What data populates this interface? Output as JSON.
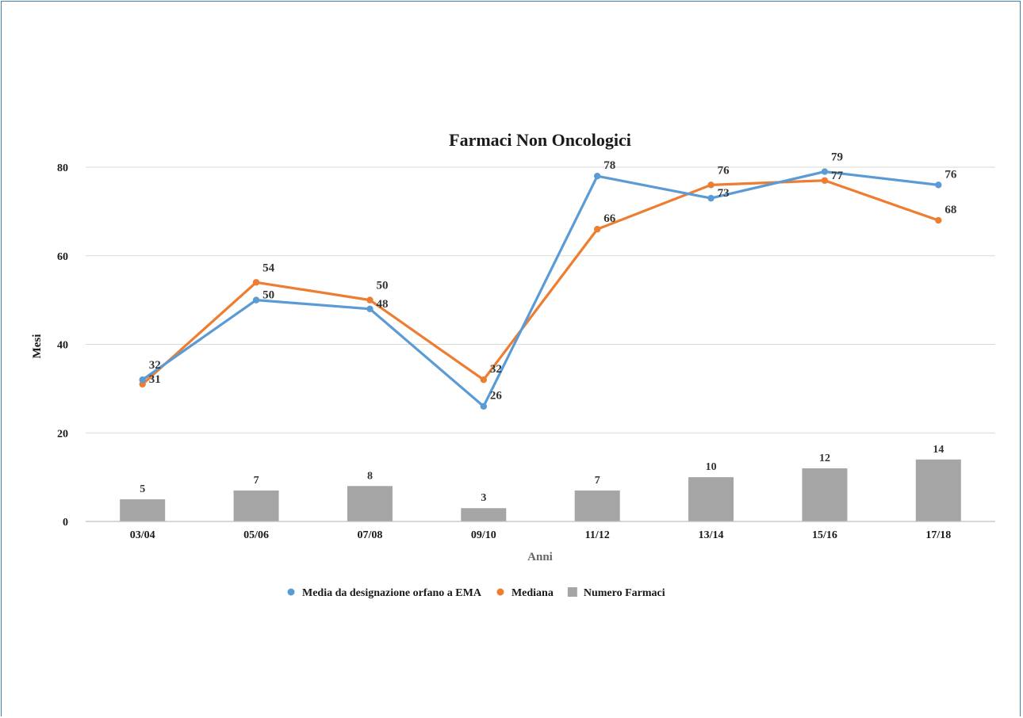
{
  "chart_data": {
    "type": "bar+line",
    "title": "Farmaci Non Oncologici",
    "xlabel": "Anni",
    "ylabel": "Mesi",
    "ylim": [
      0,
      80
    ],
    "yticks": [
      0,
      20,
      40,
      60,
      80
    ],
    "grid": true,
    "legend_position": "bottom",
    "categories": [
      "03/04",
      "05/06",
      "07/08",
      "09/10",
      "11/12",
      "13/14",
      "15/16",
      "17/18"
    ],
    "series": [
      {
        "name": "Media da designazione orfano a EMA",
        "type": "line",
        "color": "#5b9bd5",
        "values": [
          32,
          50,
          48,
          26,
          78,
          73,
          79,
          76
        ]
      },
      {
        "name": "Mediana",
        "type": "line",
        "color": "#ed7d31",
        "values": [
          31,
          54,
          50,
          32,
          66,
          76,
          77,
          68
        ]
      },
      {
        "name": "Numero Farmaci",
        "type": "bar",
        "color": "#a5a5a5",
        "values": [
          5,
          7,
          8,
          3,
          7,
          10,
          12,
          14
        ]
      }
    ]
  }
}
